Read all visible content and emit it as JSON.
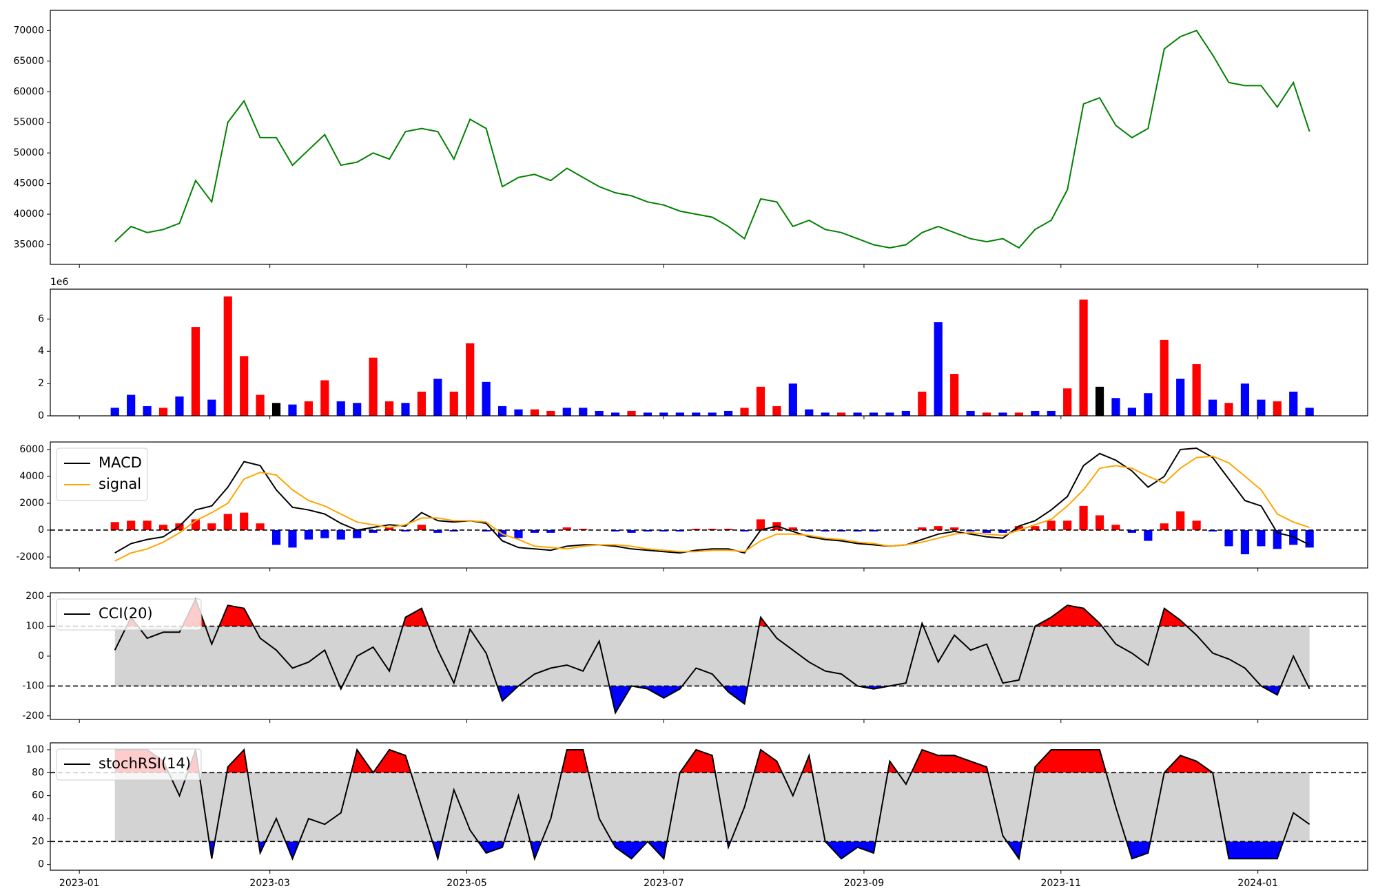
{
  "chart_data": [
    {
      "type": "line",
      "x": [
        "2023-01-12",
        "2023-01-17",
        "2023-01-22",
        "2023-01-27",
        "2023-02-01",
        "2023-02-06",
        "2023-02-11",
        "2023-02-16",
        "2023-02-21",
        "2023-02-26",
        "2023-03-03",
        "2023-03-08",
        "2023-03-13",
        "2023-03-18",
        "2023-03-23",
        "2023-03-28",
        "2023-04-02",
        "2023-04-07",
        "2023-04-12",
        "2023-04-17",
        "2023-04-22",
        "2023-04-27",
        "2023-05-02",
        "2023-05-07",
        "2023-05-12",
        "2023-05-17",
        "2023-05-22",
        "2023-05-27",
        "2023-06-01",
        "2023-06-06",
        "2023-06-11",
        "2023-06-16",
        "2023-06-21",
        "2023-06-26",
        "2023-07-01",
        "2023-07-06",
        "2023-07-11",
        "2023-07-16",
        "2023-07-21",
        "2023-07-26",
        "2023-07-31",
        "2023-08-05",
        "2023-08-10",
        "2023-08-15",
        "2023-08-20",
        "2023-08-25",
        "2023-08-30",
        "2023-09-04",
        "2023-09-09",
        "2023-09-14",
        "2023-09-19",
        "2023-09-24",
        "2023-09-29",
        "2023-10-04",
        "2023-10-09",
        "2023-10-14",
        "2023-10-19",
        "2023-10-24",
        "2023-10-29",
        "2023-11-03",
        "2023-11-08",
        "2023-11-13",
        "2023-11-18",
        "2023-11-23",
        "2023-11-28",
        "2023-12-03",
        "2023-12-08",
        "2023-12-13",
        "2023-12-18",
        "2023-12-23",
        "2023-12-28",
        "2024-01-02",
        "2024-01-07",
        "2024-01-12",
        "2024-01-17"
      ],
      "xlim": [
        "2022-12-23",
        "2024-02-04"
      ],
      "xticks": [
        {
          "value": "2023-01-01",
          "label": "2023-01"
        },
        {
          "value": "2023-03-01",
          "label": "2023-03"
        },
        {
          "value": "2023-05-01",
          "label": "2023-05"
        },
        {
          "value": "2023-07-01",
          "label": "2023-07"
        },
        {
          "value": "2023-09-01",
          "label": "2023-09"
        },
        {
          "value": "2023-11-01",
          "label": "2023-11"
        },
        {
          "value": "2024-01-01",
          "label": "2024-01"
        }
      ],
      "values": [
        35500,
        38000,
        37000,
        37500,
        38500,
        45500,
        42000,
        55000,
        58500,
        52500,
        52500,
        48000,
        50500,
        53000,
        48000,
        48500,
        50000,
        49000,
        53500,
        54000,
        53500,
        49000,
        55500,
        54000,
        44500,
        46000,
        46500,
        45500,
        47500,
        46000,
        44500,
        43500,
        43000,
        42000,
        41500,
        40500,
        40000,
        39500,
        38000,
        36000,
        42500,
        42000,
        38000,
        39000,
        37500,
        37000,
        36000,
        35000,
        34500,
        35000,
        37000,
        38000,
        37000,
        36000,
        35500,
        36000,
        34500,
        37500,
        39000,
        44000,
        58000,
        59000,
        54500,
        52500,
        54000,
        67000,
        69000,
        70000,
        66000,
        61500,
        61000,
        61000,
        57500,
        61500,
        53500
      ],
      "color": "#008000",
      "ylim": [
        31800,
        73300
      ],
      "yticks": [
        35000,
        40000,
        45000,
        50000,
        55000,
        60000,
        65000,
        70000
      ]
    },
    {
      "type": "bar",
      "offset_text": "1e6",
      "values": [
        0.5,
        1.3,
        0.6,
        0.5,
        1.2,
        5.5,
        1.0,
        7.4,
        3.7,
        1.3,
        0.8,
        0.7,
        0.9,
        2.2,
        0.9,
        0.8,
        3.6,
        0.9,
        0.8,
        1.5,
        2.3,
        1.5,
        4.5,
        2.1,
        0.6,
        0.4,
        0.4,
        0.3,
        0.5,
        0.5,
        0.3,
        0.2,
        0.3,
        0.2,
        0.2,
        0.2,
        0.2,
        0.2,
        0.3,
        0.5,
        1.8,
        0.6,
        2.0,
        0.4,
        0.2,
        0.2,
        0.2,
        0.2,
        0.2,
        0.3,
        1.5,
        5.8,
        2.6,
        0.3,
        0.2,
        0.2,
        0.2,
        0.3,
        0.3,
        1.7,
        7.2,
        1.8,
        1.1,
        0.5,
        1.4,
        4.7,
        2.3,
        3.2,
        1.0,
        0.8,
        2.0,
        1.0,
        0.9,
        1.5,
        0.5
      ],
      "colors": [
        "#0000ff",
        "#0000ff",
        "#0000ff",
        "#ff0000",
        "#0000ff",
        "#ff0000",
        "#0000ff",
        "#ff0000",
        "#ff0000",
        "#ff0000",
        "#000000",
        "#0000ff",
        "#ff0000",
        "#ff0000",
        "#0000ff",
        "#0000ff",
        "#ff0000",
        "#ff0000",
        "#0000ff",
        "#ff0000",
        "#0000ff",
        "#ff0000",
        "#ff0000",
        "#0000ff",
        "#0000ff",
        "#0000ff",
        "#ff0000",
        "#ff0000",
        "#0000ff",
        "#0000ff",
        "#0000ff",
        "#0000ff",
        "#ff0000",
        "#0000ff",
        "#0000ff",
        "#0000ff",
        "#0000ff",
        "#0000ff",
        "#0000ff",
        "#ff0000",
        "#ff0000",
        "#ff0000",
        "#0000ff",
        "#0000ff",
        "#0000ff",
        "#ff0000",
        "#0000ff",
        "#0000ff",
        "#0000ff",
        "#0000ff",
        "#ff0000",
        "#0000ff",
        "#ff0000",
        "#0000ff",
        "#ff0000",
        "#0000ff",
        "#ff0000",
        "#0000ff",
        "#0000ff",
        "#ff0000",
        "#ff0000",
        "#000000",
        "#0000ff",
        "#0000ff",
        "#0000ff",
        "#ff0000",
        "#0000ff",
        "#ff0000",
        "#0000ff",
        "#ff0000",
        "#0000ff",
        "#0000ff",
        "#ff0000",
        "#0000ff",
        "#0000ff"
      ],
      "ylim": [
        0,
        7.85
      ],
      "yticks": [
        0,
        2,
        4,
        6
      ]
    },
    {
      "type": "macd",
      "series": [
        {
          "name": "MACD",
          "color": "#000000",
          "values": [
            -1700,
            -1000,
            -700,
            -500,
            300,
            1500,
            1800,
            3200,
            5100,
            4800,
            3000,
            1700,
            1500,
            1200,
            500,
            0,
            200,
            400,
            300,
            1300,
            700,
            600,
            700,
            500,
            -800,
            -1300,
            -1400,
            -1500,
            -1200,
            -1100,
            -1100,
            -1200,
            -1400,
            -1500,
            -1600,
            -1700,
            -1500,
            -1400,
            -1400,
            -1700,
            0,
            300,
            -100,
            -500,
            -700,
            -800,
            -1000,
            -1100,
            -1200,
            -1100,
            -700,
            -300,
            -100,
            -300,
            -500,
            -600,
            300,
            700,
            1500,
            2500,
            4800,
            5700,
            5200,
            4400,
            3200,
            4000,
            6000,
            6100,
            5400,
            3800,
            2200,
            1800,
            -200,
            -500,
            -1100
          ]
        },
        {
          "name": "signal",
          "color": "#ffa500",
          "values": [
            -2300,
            -1700,
            -1400,
            -900,
            -200,
            700,
            1300,
            2000,
            3800,
            4300,
            4100,
            3000,
            2200,
            1800,
            1200,
            600,
            400,
            200,
            400,
            900,
            900,
            700,
            700,
            600,
            -300,
            -700,
            -1200,
            -1300,
            -1400,
            -1200,
            -1100,
            -1100,
            -1200,
            -1400,
            -1500,
            -1600,
            -1600,
            -1500,
            -1500,
            -1600,
            -800,
            -300,
            -300,
            -400,
            -600,
            -700,
            -900,
            -1000,
            -1200,
            -1100,
            -900,
            -600,
            -300,
            -200,
            -300,
            -400,
            0,
            400,
            800,
            1800,
            3000,
            4600,
            4800,
            4600,
            4000,
            3500,
            4600,
            5400,
            5500,
            5000,
            4000,
            3000,
            1200,
            600,
            200
          ]
        }
      ],
      "histogram": {
        "positive_color": "#ff0000",
        "negative_color": "#0000ff",
        "values": [
          600,
          700,
          700,
          400,
          500,
          800,
          500,
          1200,
          1300,
          500,
          -1100,
          -1300,
          -700,
          -600,
          -700,
          -600,
          -200,
          200,
          -100,
          400,
          -200,
          -100,
          0,
          -100,
          -500,
          -600,
          -200,
          -200,
          200,
          100,
          0,
          -100,
          -200,
          -100,
          -100,
          -100,
          100,
          100,
          100,
          -100,
          800,
          600,
          200,
          -100,
          -100,
          -100,
          -100,
          -100,
          0,
          0,
          200,
          300,
          200,
          -100,
          -200,
          -200,
          300,
          300,
          700,
          700,
          1800,
          1100,
          400,
          -200,
          -800,
          500,
          1400,
          700,
          -100,
          -1200,
          -1800,
          -1200,
          -1400,
          -1100,
          -1300
        ]
      },
      "reference_line": 0,
      "legend": "upper left",
      "ylim": [
        -2820,
        6560
      ],
      "yticks": [
        -2000,
        0,
        2000,
        4000,
        6000
      ]
    },
    {
      "type": "oscillator",
      "series": [
        {
          "name": "CCI(20)",
          "color": "#000000",
          "values": [
            20,
            130,
            60,
            80,
            80,
            190,
            40,
            170,
            160,
            60,
            20,
            -40,
            -20,
            20,
            -110,
            0,
            30,
            -50,
            130,
            160,
            20,
            -90,
            90,
            10,
            -150,
            -100,
            -60,
            -40,
            -30,
            -50,
            50,
            -190,
            -100,
            -110,
            -140,
            -110,
            -40,
            -60,
            -120,
            -160,
            130,
            60,
            20,
            -20,
            -50,
            -60,
            -100,
            -110,
            -100,
            -90,
            110,
            -20,
            70,
            20,
            40,
            -90,
            -80,
            100,
            130,
            170,
            160,
            110,
            40,
            10,
            -30,
            160,
            120,
            70,
            10,
            -10,
            -40,
            -100,
            -130,
            0,
            -110
          ]
        }
      ],
      "bands": [
        -100,
        100
      ],
      "band_color": "#d3d3d3",
      "upper_color": "#ff0000",
      "lower_color": "#0000ff",
      "legend": "upper left",
      "ylim": [
        -212,
        212
      ],
      "yticks": [
        -200,
        -100,
        0,
        100,
        200
      ]
    },
    {
      "type": "oscillator",
      "series": [
        {
          "name": "stochRSI(14)",
          "color": "#000000",
          "values": [
            100,
            100,
            100,
            90,
            60,
            100,
            5,
            85,
            100,
            10,
            40,
            5,
            40,
            35,
            45,
            100,
            80,
            100,
            95,
            50,
            5,
            65,
            30,
            10,
            15,
            60,
            5,
            40,
            100,
            100,
            40,
            15,
            5,
            20,
            5,
            80,
            100,
            95,
            15,
            50,
            100,
            90,
            60,
            95,
            20,
            5,
            15,
            10,
            90,
            70,
            100,
            95,
            95,
            90,
            85,
            25,
            5,
            85,
            100,
            100,
            100,
            100,
            50,
            5,
            10,
            80,
            95,
            90,
            80,
            5,
            5,
            5,
            5,
            45,
            35
          ]
        }
      ],
      "bands": [
        20,
        80
      ],
      "band_color": "#d3d3d3",
      "upper_color": "#ff0000",
      "lower_color": "#0000ff",
      "legend": "upper left",
      "ylim": [
        -5,
        106
      ],
      "yticks": [
        0,
        20,
        40,
        60,
        80,
        100
      ]
    }
  ]
}
